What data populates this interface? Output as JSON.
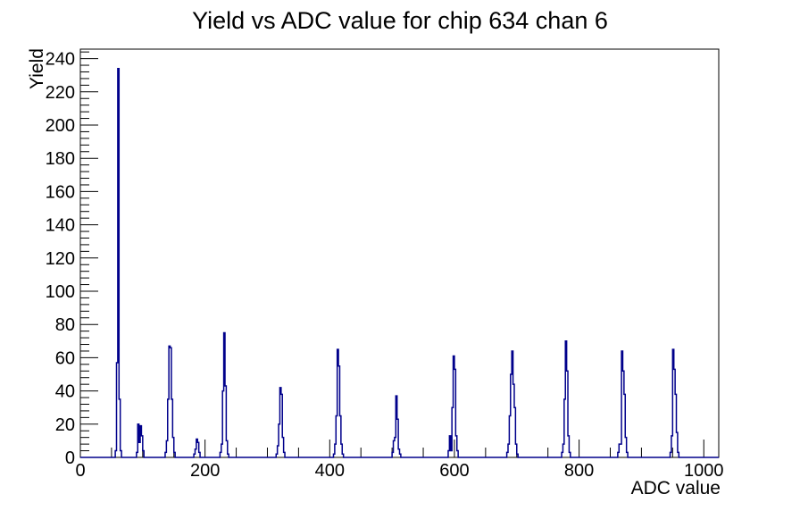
{
  "title": "Yield vs ADC value for chip 634 chan 6",
  "chart_data": {
    "type": "bar",
    "title": "Yield vs ADC value for chip 634 chan 6",
    "xlabel": "ADC value",
    "ylabel": "Yield",
    "xlim": [
      0,
      1024
    ],
    "ylim": [
      0,
      245.7
    ],
    "x_major_ticks": [
      0,
      200,
      400,
      600,
      800,
      1000
    ],
    "x_minor_step": 50,
    "y_major_ticks": [
      0,
      20,
      40,
      60,
      80,
      100,
      120,
      140,
      160,
      180,
      200,
      220,
      240
    ],
    "y_minor_step": 4,
    "grid": "off",
    "legend": "none",
    "bin_width": 2,
    "line_color": "#00008b",
    "bars": [
      [
        56,
        4
      ],
      [
        58,
        57
      ],
      [
        60,
        234
      ],
      [
        62,
        35
      ],
      [
        64,
        4
      ],
      [
        90,
        3
      ],
      [
        92,
        20
      ],
      [
        94,
        9
      ],
      [
        96,
        19
      ],
      [
        98,
        13
      ],
      [
        100,
        4
      ],
      [
        136,
        3
      ],
      [
        138,
        10
      ],
      [
        140,
        35
      ],
      [
        142,
        67
      ],
      [
        144,
        66
      ],
      [
        146,
        35
      ],
      [
        148,
        12
      ],
      [
        150,
        3
      ],
      [
        182,
        2
      ],
      [
        184,
        5
      ],
      [
        186,
        11
      ],
      [
        188,
        9
      ],
      [
        190,
        3
      ],
      [
        224,
        3
      ],
      [
        226,
        8
      ],
      [
        228,
        40
      ],
      [
        230,
        75
      ],
      [
        232,
        43
      ],
      [
        234,
        10
      ],
      [
        236,
        2
      ],
      [
        314,
        2
      ],
      [
        316,
        7
      ],
      [
        318,
        20
      ],
      [
        320,
        42
      ],
      [
        322,
        38
      ],
      [
        324,
        12
      ],
      [
        326,
        3
      ],
      [
        406,
        2
      ],
      [
        408,
        8
      ],
      [
        410,
        25
      ],
      [
        412,
        65
      ],
      [
        414,
        55
      ],
      [
        416,
        25
      ],
      [
        418,
        8
      ],
      [
        420,
        2
      ],
      [
        500,
        3
      ],
      [
        502,
        10
      ],
      [
        504,
        12
      ],
      [
        506,
        37
      ],
      [
        508,
        23
      ],
      [
        510,
        5
      ],
      [
        512,
        2
      ],
      [
        590,
        4
      ],
      [
        592,
        13
      ],
      [
        594,
        4
      ],
      [
        596,
        30
      ],
      [
        598,
        61
      ],
      [
        600,
        53
      ],
      [
        602,
        13
      ],
      [
        604,
        4
      ],
      [
        684,
        3
      ],
      [
        686,
        8
      ],
      [
        688,
        25
      ],
      [
        690,
        50
      ],
      [
        692,
        64
      ],
      [
        694,
        44
      ],
      [
        696,
        30
      ],
      [
        698,
        8
      ],
      [
        700,
        2
      ],
      [
        772,
        3
      ],
      [
        774,
        8
      ],
      [
        776,
        35
      ],
      [
        778,
        70
      ],
      [
        780,
        52
      ],
      [
        782,
        13
      ],
      [
        784,
        3
      ],
      [
        862,
        3
      ],
      [
        864,
        8
      ],
      [
        866,
        8
      ],
      [
        868,
        64
      ],
      [
        870,
        52
      ],
      [
        872,
        38
      ],
      [
        874,
        12
      ],
      [
        876,
        3
      ],
      [
        946,
        3
      ],
      [
        948,
        13
      ],
      [
        950,
        65
      ],
      [
        952,
        53
      ],
      [
        954,
        38
      ],
      [
        956,
        15
      ],
      [
        958,
        3
      ]
    ],
    "peak_summary": [
      {
        "adc": 60,
        "yield": 234
      },
      {
        "adc": 95,
        "yield": 20
      },
      {
        "adc": 143,
        "yield": 67
      },
      {
        "adc": 187,
        "yield": 11
      },
      {
        "adc": 231,
        "yield": 75
      },
      {
        "adc": 321,
        "yield": 42
      },
      {
        "adc": 413,
        "yield": 65
      },
      {
        "adc": 507,
        "yield": 37
      },
      {
        "adc": 599,
        "yield": 61
      },
      {
        "adc": 693,
        "yield": 64
      },
      {
        "adc": 779,
        "yield": 70
      },
      {
        "adc": 869,
        "yield": 64
      },
      {
        "adc": 951,
        "yield": 65
      }
    ]
  }
}
